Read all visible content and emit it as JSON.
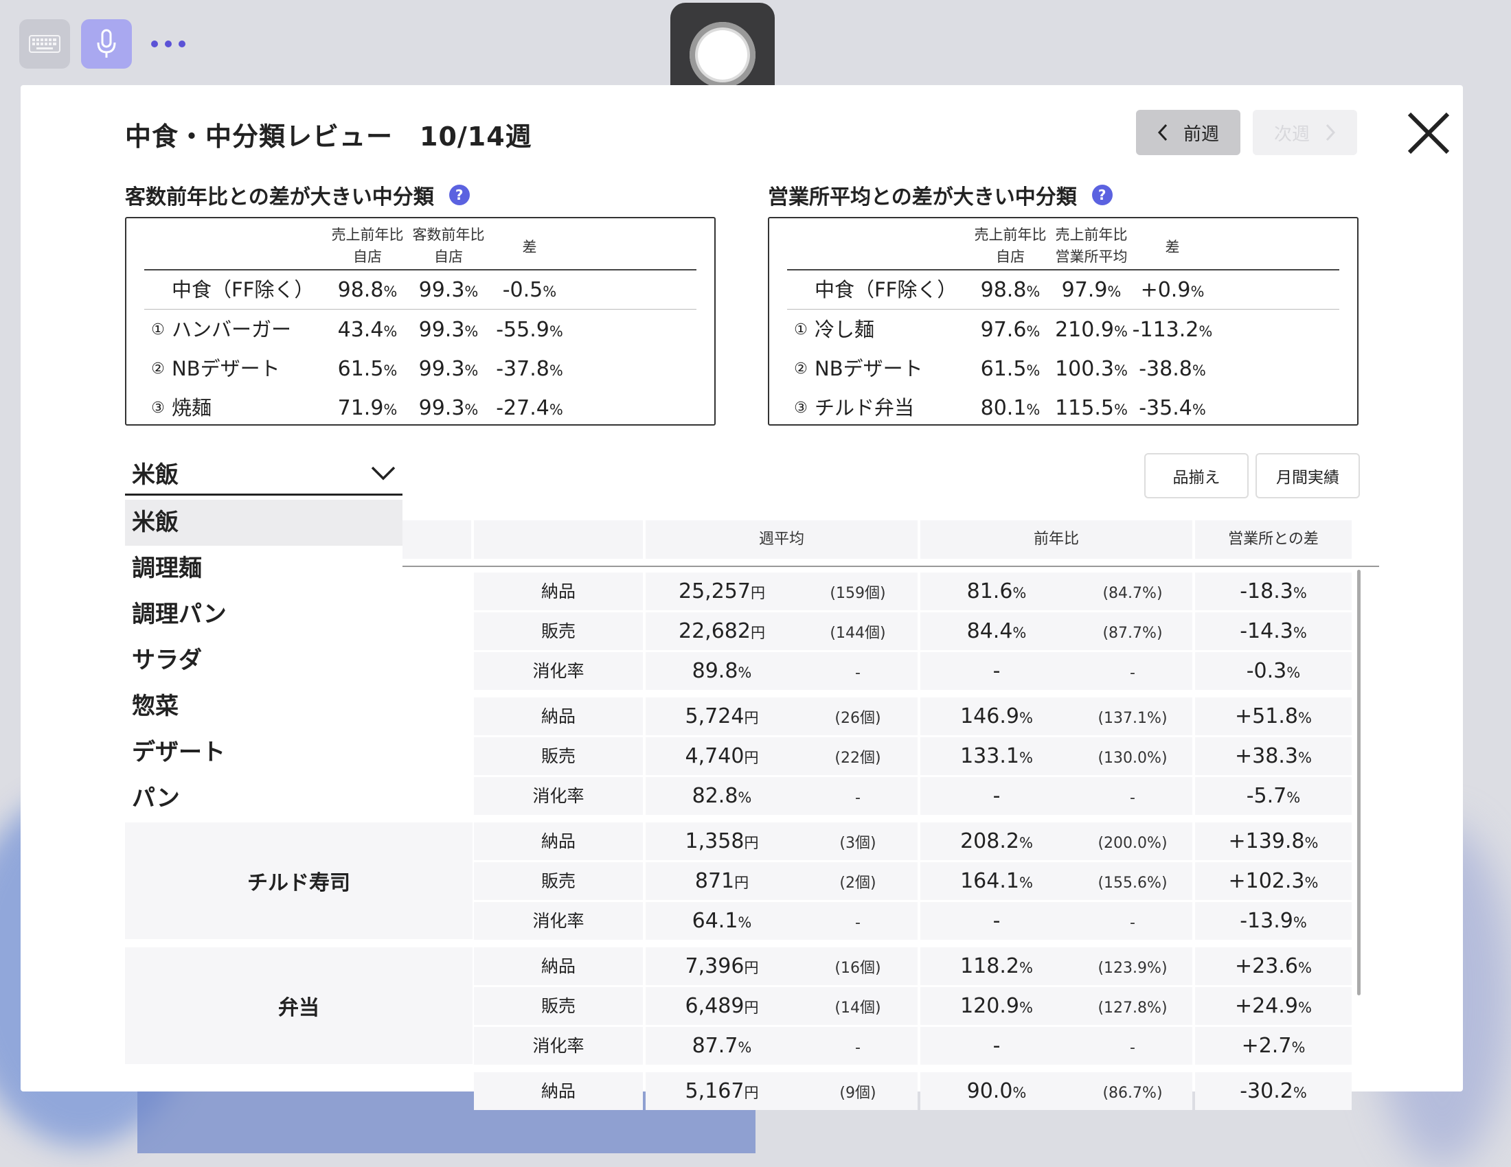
{
  "title": "中食・中分類レビュー　10/14週",
  "nav": {
    "prev": "前週",
    "next": "次週"
  },
  "help_symbol": "?",
  "left_summary": {
    "title": "客数前年比との差が大きい中分類",
    "headers": [
      [
        "売上前年比",
        "自店"
      ],
      [
        "客数前年比",
        "自店"
      ],
      [
        "差",
        ""
      ]
    ],
    "rows": [
      {
        "num": "",
        "name": "中食（FF除く）",
        "v1": "98.8",
        "v2": "99.3",
        "v3": "-0.5"
      },
      {
        "num": "①",
        "name": "ハンバーガー",
        "v1": "43.4",
        "v2": "99.3",
        "v3": "-55.9"
      },
      {
        "num": "②",
        "name": "NBデザート",
        "v1": "61.5",
        "v2": "99.3",
        "v3": "-37.8"
      },
      {
        "num": "③",
        "name": "焼麺",
        "v1": "71.9",
        "v2": "99.3",
        "v3": "-27.4"
      }
    ]
  },
  "right_summary": {
    "title": "営業所平均との差が大きい中分類",
    "headers": [
      [
        "売上前年比",
        "自店"
      ],
      [
        "売上前年比",
        "営業所平均"
      ],
      [
        "差",
        ""
      ]
    ],
    "rows": [
      {
        "num": "",
        "name": "中食（FF除く）",
        "v1": "98.8",
        "v2": "97.9",
        "v3": "+0.9"
      },
      {
        "num": "①",
        "name": "冷し麺",
        "v1": "97.6",
        "v2": "210.9",
        "v3": "-113.2"
      },
      {
        "num": "②",
        "name": "NBデザート",
        "v1": "61.5",
        "v2": "100.3",
        "v3": "-38.8"
      },
      {
        "num": "③",
        "name": "チルド弁当",
        "v1": "80.1",
        "v2": "115.5",
        "v3": "-35.4"
      }
    ]
  },
  "percent_unit": "%",
  "dropdown": {
    "selected": "米飯",
    "options": [
      "米飯",
      "調理麺",
      "調理パン",
      "サラダ",
      "惣菜",
      "デザート",
      "パン"
    ]
  },
  "buttons": {
    "assortment": "品揃え",
    "monthly": "月間実績"
  },
  "table": {
    "headers": {
      "weekly_avg": "週平均",
      "yoy": "前年比",
      "diff": "営業所との差"
    },
    "yen_unit": "円",
    "groups": [
      {
        "name": "",
        "rows": [
          {
            "label": "納品",
            "value": "25,257",
            "unit": "円",
            "qty": "(159個)",
            "yoy": "81.6",
            "yoy_sub": "(84.7%)",
            "diff": "-18.3"
          },
          {
            "label": "販売",
            "value": "22,682",
            "unit": "円",
            "qty": "(144個)",
            "yoy": "84.4",
            "yoy_sub": "(87.7%)",
            "diff": "-14.3"
          },
          {
            "label": "消化率",
            "value": "89.8",
            "unit": "%",
            "qty": "-",
            "yoy": "-",
            "yoy_sub": "-",
            "diff": "-0.3"
          }
        ]
      },
      {
        "name": "",
        "rows": [
          {
            "label": "納品",
            "value": "5,724",
            "unit": "円",
            "qty": "(26個)",
            "yoy": "146.9",
            "yoy_sub": "(137.1%)",
            "diff": "+51.8"
          },
          {
            "label": "販売",
            "value": "4,740",
            "unit": "円",
            "qty": "(22個)",
            "yoy": "133.1",
            "yoy_sub": "(130.0%)",
            "diff": "+38.3"
          },
          {
            "label": "消化率",
            "value": "82.8",
            "unit": "%",
            "qty": "-",
            "yoy": "-",
            "yoy_sub": "-",
            "diff": "-5.7"
          }
        ]
      },
      {
        "name": "チルド寿司",
        "rows": [
          {
            "label": "納品",
            "value": "1,358",
            "unit": "円",
            "qty": "(3個)",
            "yoy": "208.2",
            "yoy_sub": "(200.0%)",
            "diff": "+139.8"
          },
          {
            "label": "販売",
            "value": "871",
            "unit": "円",
            "qty": "(2個)",
            "yoy": "164.1",
            "yoy_sub": "(155.6%)",
            "diff": "+102.3"
          },
          {
            "label": "消化率",
            "value": "64.1",
            "unit": "%",
            "qty": "-",
            "yoy": "-",
            "yoy_sub": "-",
            "diff": "-13.9"
          }
        ]
      },
      {
        "name": "弁当",
        "rows": [
          {
            "label": "納品",
            "value": "7,396",
            "unit": "円",
            "qty": "(16個)",
            "yoy": "118.2",
            "yoy_sub": "(123.9%)",
            "diff": "+23.6"
          },
          {
            "label": "販売",
            "value": "6,489",
            "unit": "円",
            "qty": "(14個)",
            "yoy": "120.9",
            "yoy_sub": "(127.8%)",
            "diff": "+24.9"
          },
          {
            "label": "消化率",
            "value": "87.7",
            "unit": "%",
            "qty": "-",
            "yoy": "-",
            "yoy_sub": "-",
            "diff": "+2.7"
          }
        ]
      },
      {
        "name": "",
        "rows": [
          {
            "label": "納品",
            "value": "5,167",
            "unit": "円",
            "qty": "(9個)",
            "yoy": "90.0",
            "yoy_sub": "(86.7%)",
            "diff": "-30.2"
          }
        ]
      }
    ]
  },
  "colors": {
    "accent": "#5b62e0",
    "mic_bg": "#a9a8f0",
    "cell_bg": "#f6f6f8"
  }
}
